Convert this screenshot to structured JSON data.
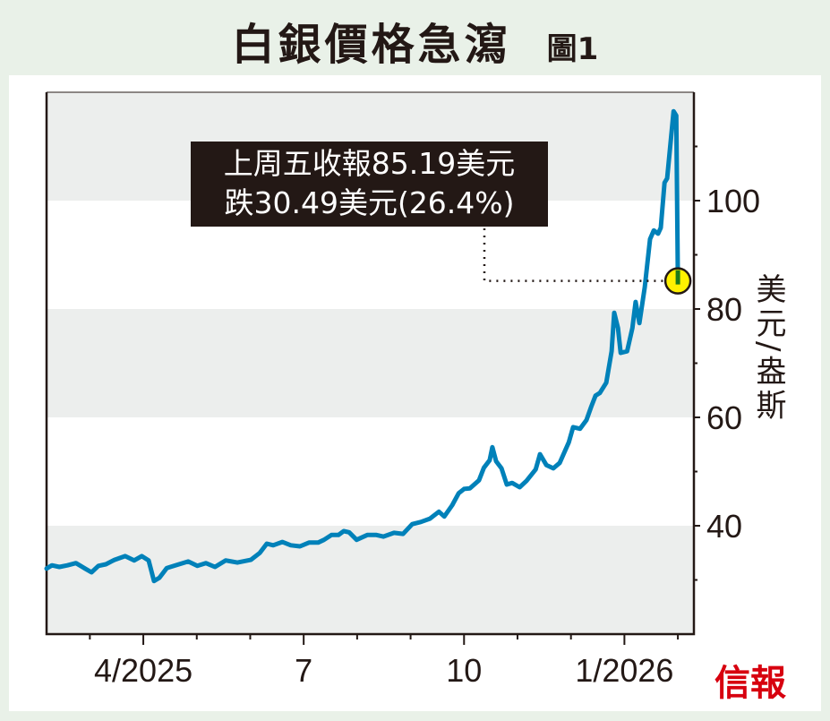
{
  "title": "白銀價格急瀉",
  "figure_label": "圖1",
  "annotation": {
    "line1": "上周五收報85.19美元",
    "line2": "跌30.49美元(26.4%)"
  },
  "logo": "信報",
  "chart_data": {
    "type": "line",
    "title": "白銀價格急瀉",
    "ylabel": "美元/盎斯",
    "xlabel": "",
    "x_unit": "month (4 = Apr 2025, 13 = Jan 2026)",
    "xlim": [
      2.19,
      14.3
    ],
    "ylim": [
      20,
      120
    ],
    "yticks": [
      40,
      60,
      80,
      100
    ],
    "ytick_labels": [
      "40",
      "60",
      "80",
      "100"
    ],
    "xticks": [
      4,
      7,
      10,
      13
    ],
    "xtick_labels": [
      "4/2025",
      "7",
      "10",
      "1/2026"
    ],
    "minor_xticks": [
      3,
      5,
      6,
      8,
      9,
      11,
      12,
      14
    ],
    "bands": [
      [
        20,
        40
      ],
      [
        60,
        80
      ],
      [
        100,
        120
      ]
    ],
    "band_color": "#eceeed",
    "line_color": "#0081b9",
    "marker_color": "#fff100",
    "last_close": 85.19,
    "change": -30.49,
    "change_pct": -26.4,
    "series": [
      {
        "name": "白銀",
        "x": [
          2.19,
          2.29,
          2.43,
          2.58,
          2.74,
          2.91,
          3.03,
          3.16,
          3.3,
          3.46,
          3.66,
          3.83,
          3.97,
          4.1,
          4.2,
          4.3,
          4.44,
          4.6,
          4.84,
          5.01,
          5.17,
          5.34,
          5.54,
          5.76,
          6.01,
          6.18,
          6.31,
          6.43,
          6.6,
          6.76,
          6.93,
          7.1,
          7.27,
          7.38,
          7.52,
          7.65,
          7.75,
          7.85,
          7.99,
          8.19,
          8.36,
          8.49,
          8.69,
          8.86,
          9.03,
          9.19,
          9.36,
          9.53,
          9.63,
          9.78,
          9.9,
          10.0,
          10.11,
          10.28,
          10.37,
          10.48,
          10.53,
          10.6,
          10.7,
          10.8,
          10.9,
          11.04,
          11.17,
          11.34,
          11.42,
          11.54,
          11.67,
          11.79,
          11.96,
          12.04,
          12.17,
          12.29,
          12.38,
          12.46,
          12.54,
          12.66,
          12.76,
          12.81,
          12.88,
          12.93,
          13.05,
          13.15,
          13.21,
          13.28,
          13.38,
          13.48,
          13.55,
          13.63,
          13.68,
          13.75,
          13.8,
          13.92,
          13.97,
          14.0
        ],
        "y": [
          32.1,
          32.7,
          32.4,
          32.7,
          33.1,
          32.1,
          31.4,
          32.6,
          32.9,
          33.7,
          34.4,
          33.6,
          34.4,
          33.6,
          29.8,
          30.4,
          32.2,
          32.7,
          33.4,
          32.6,
          33.1,
          32.4,
          33.6,
          33.2,
          33.7,
          35.0,
          36.7,
          36.4,
          37.0,
          36.4,
          36.2,
          36.9,
          36.9,
          37.4,
          38.3,
          38.3,
          39.0,
          38.8,
          37.4,
          38.3,
          38.3,
          38.0,
          38.7,
          38.5,
          40.3,
          40.7,
          41.3,
          42.6,
          41.7,
          43.8,
          46.0,
          46.8,
          46.9,
          48.4,
          50.7,
          52.1,
          54.5,
          51.9,
          50.6,
          47.6,
          47.9,
          47.1,
          48.3,
          50.4,
          53.2,
          51.2,
          50.6,
          51.6,
          55.4,
          58.2,
          57.9,
          59.5,
          62.0,
          64.0,
          64.5,
          66.4,
          72.2,
          79.3,
          76.5,
          71.9,
          72.2,
          76.5,
          81.3,
          77.4,
          84.0,
          92.9,
          94.5,
          93.9,
          95.0,
          103.3,
          104.1,
          116.5,
          115.68,
          85.19
        ]
      }
    ]
  }
}
